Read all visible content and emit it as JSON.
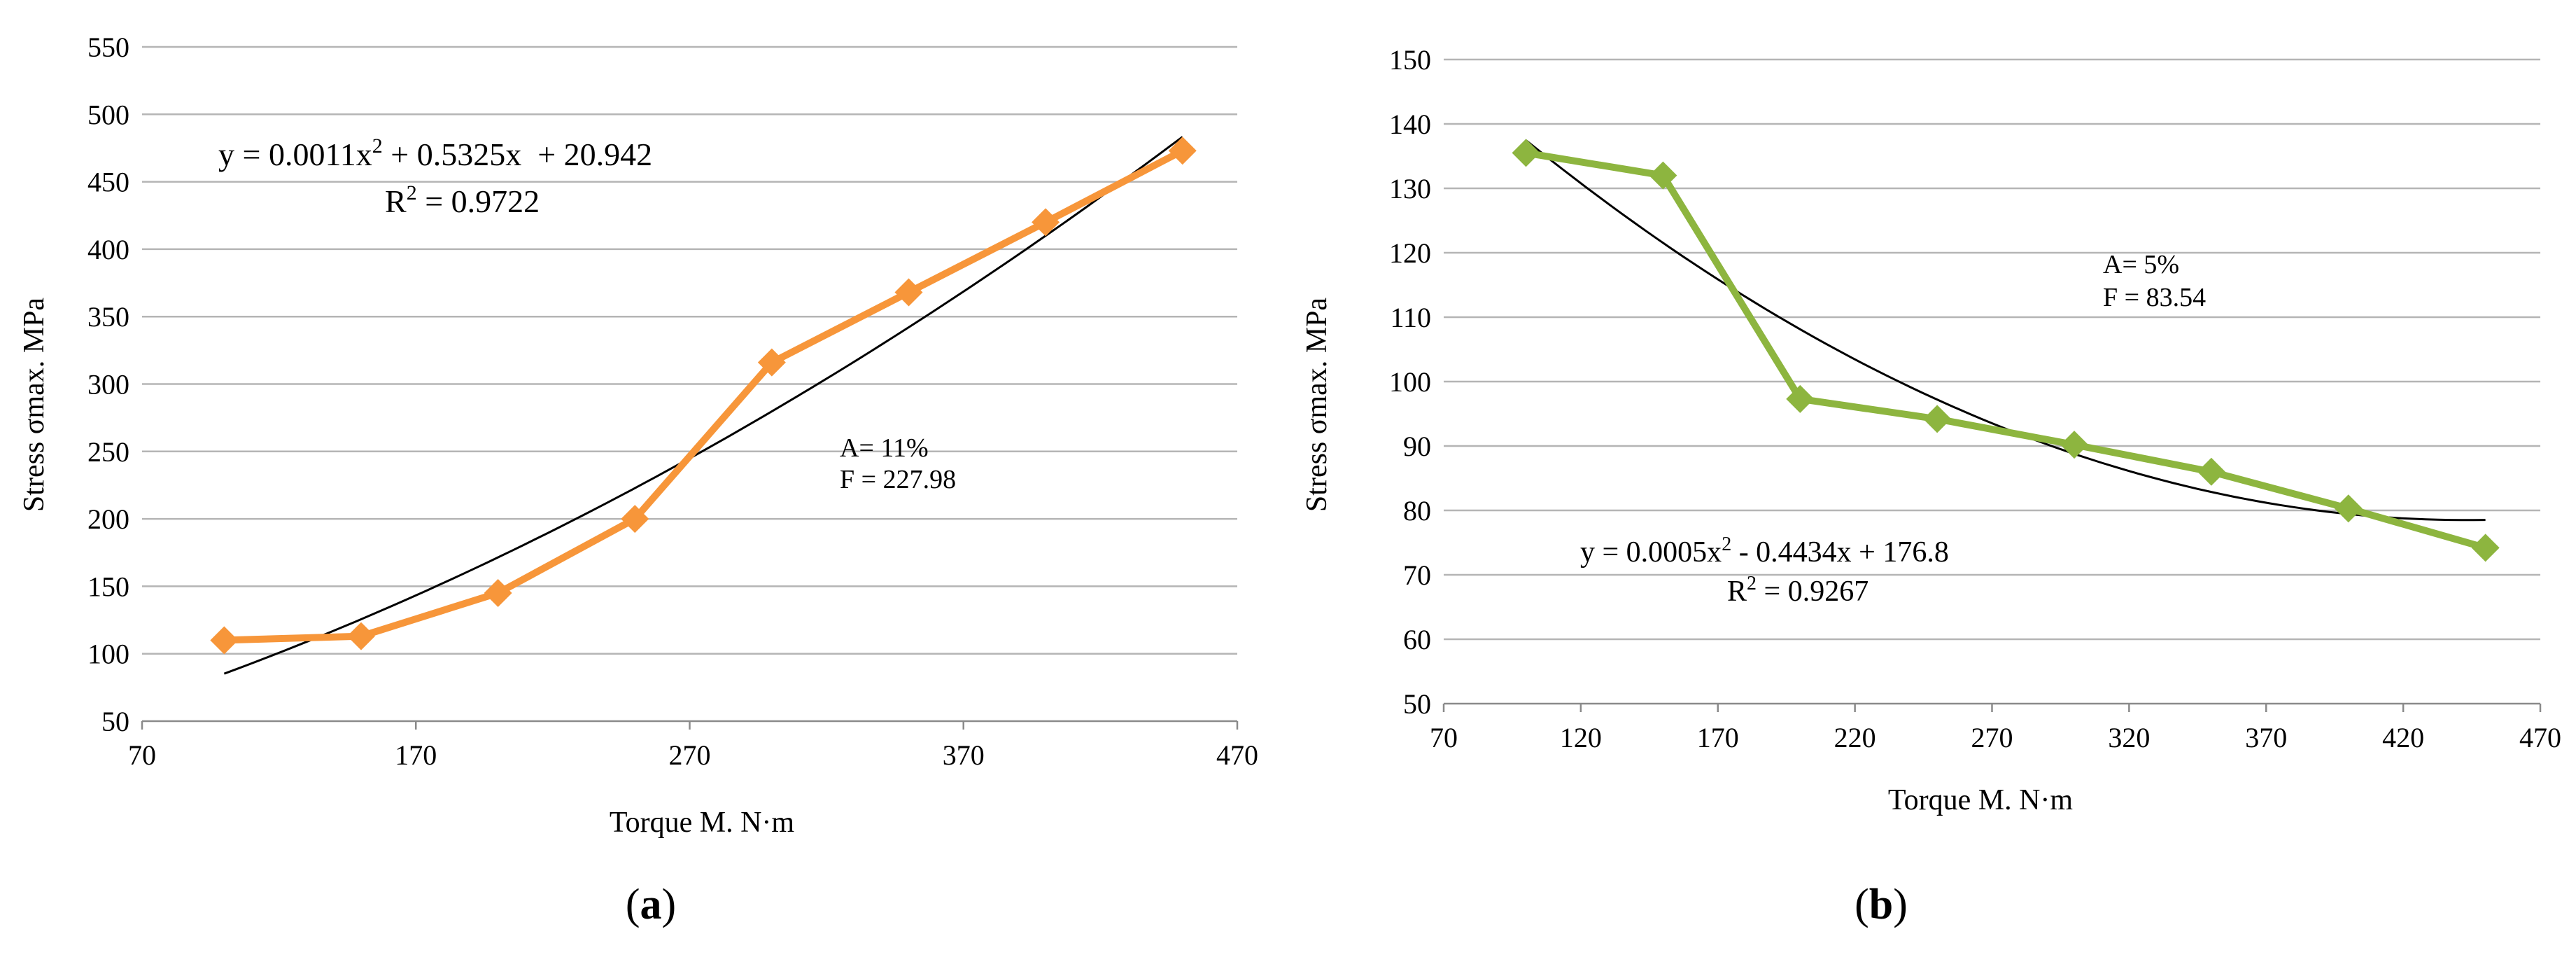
{
  "chart_data": [
    {
      "id": "a",
      "type": "line",
      "panel_label": "a",
      "xlabel": "Torque M. N·m",
      "ylabel": "Stress σmax. MPa",
      "xlim": [
        70,
        470
      ],
      "ylim": [
        50,
        550
      ],
      "xticks": [
        70,
        170,
        270,
        370,
        470
      ],
      "yticks": [
        50,
        100,
        150,
        200,
        250,
        300,
        350,
        400,
        450,
        500,
        550
      ],
      "grid": "horizontal",
      "series": [
        {
          "name": "data",
          "color": "#F7963A",
          "marker": "diamond",
          "x": [
            100,
            150,
            200,
            250,
            300,
            350,
            400,
            450
          ],
          "y": [
            110,
            113,
            145,
            200,
            316,
            368,
            420,
            473
          ]
        }
      ],
      "trendline": {
        "type": "poly2",
        "coef": [
          0.0011,
          0.5325,
          20.942
        ],
        "xrange": [
          100,
          450
        ],
        "color": "#000000"
      },
      "annotations": {
        "eq_pre": "y = 0.0011x",
        "eq_sup": "2",
        "eq_post": " + 0.5325x  + 20.942",
        "r2_pre": "R",
        "r2_sup": "2",
        "r2_post": " = 0.9722",
        "a_text": "A= 11%",
        "f_text": "F = 227.98"
      }
    },
    {
      "id": "b",
      "type": "line",
      "panel_label": "b",
      "xlabel": "Torque M. N·m",
      "ylabel": "Stress σmax. MPa",
      "xlim": [
        70,
        470
      ],
      "ylim": [
        50,
        150
      ],
      "xticks": [
        70,
        120,
        170,
        220,
        270,
        320,
        370,
        420,
        470
      ],
      "yticks": [
        50,
        60,
        70,
        80,
        90,
        100,
        110,
        120,
        130,
        140,
        150
      ],
      "grid": "horizontal",
      "series": [
        {
          "name": "data",
          "color": "#8DB53F",
          "marker": "diamond",
          "x": [
            100,
            150,
            200,
            250,
            300,
            350,
            400,
            450
          ],
          "y": [
            135.5,
            132,
            97.3,
            94.2,
            90.2,
            86,
            80.3,
            74.2
          ]
        }
      ],
      "trendline": {
        "type": "poly2",
        "coef": [
          0.0005,
          -0.4434,
          176.8
        ],
        "xrange": [
          100,
          450
        ],
        "color": "#000000"
      },
      "annotations": {
        "eq_pre": "y = 0.0005x",
        "eq_sup": "2",
        "eq_post": " - 0.4434x + 176.8",
        "r2_pre": "R",
        "r2_sup": "2",
        "r2_post": " = 0.9267",
        "a_text": "A= 5%",
        "f_text": "F = 83.54"
      }
    }
  ]
}
